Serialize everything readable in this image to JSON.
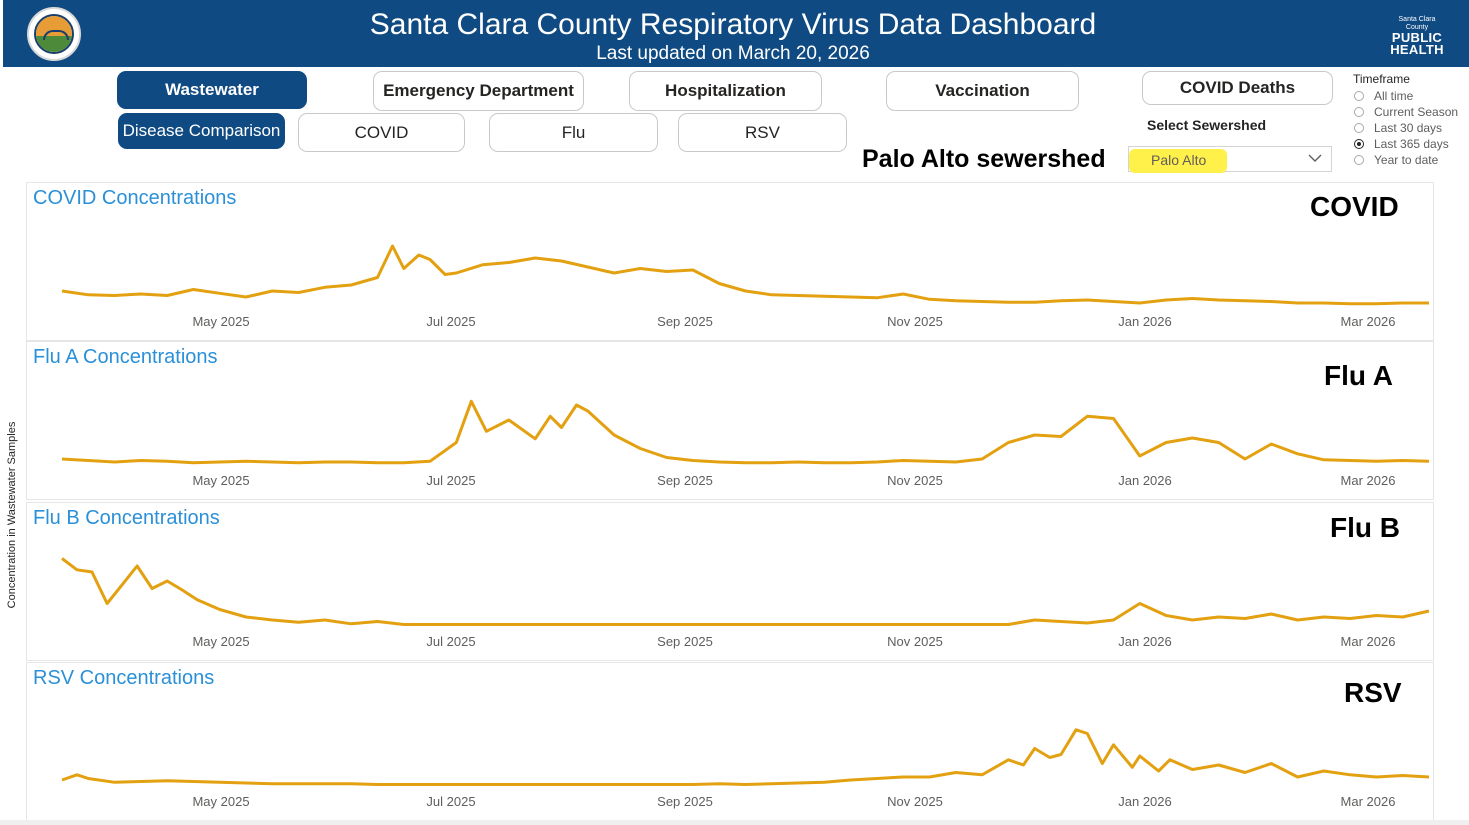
{
  "header": {
    "title": "Santa Clara County Respiratory Virus Data Dashboard",
    "subtitle": "Last updated on March 20, 2026",
    "logo_small": "Santa Clara County",
    "logo_line1": "PUBLIC",
    "logo_line2": "HEALTH"
  },
  "nav": {
    "wastewater": "Wastewater",
    "emergency": "Emergency Department",
    "hospitalization": "Hospitalization",
    "vaccination": "Vaccination",
    "covid_deaths": "COVID Deaths",
    "disease_comparison": "Disease Comparison",
    "covid": "COVID",
    "flu": "Flu",
    "rsv": "RSV"
  },
  "sewershed": {
    "label": "Select Sewershed",
    "value": "Palo Alto",
    "annotation": "Palo Alto sewershed"
  },
  "timeframe": {
    "title": "Timeframe",
    "options": [
      "All time",
      "Current Season",
      "Last 30 days",
      "Last 365 days",
      "Year to date"
    ],
    "selected": "Last 365 days"
  },
  "yaxis_label": "Concentration in Wastewater Samples",
  "colors": {
    "line": "#e3a010",
    "header": "#0f4a82",
    "title": "#2a90d8"
  },
  "chart_data": [
    {
      "type": "line",
      "title": "COVID Concentrations",
      "annotation": "COVID",
      "xlabel": "",
      "ylabel": "",
      "x_ticks": [
        "May 2025",
        "Jul 2025",
        "Sep 2025",
        "Nov 2025",
        "Jan 2026",
        "Mar 2026"
      ],
      "ylim": [
        0,
        100
      ],
      "x_day": [
        0,
        7,
        14,
        21,
        28,
        35,
        42,
        49,
        56,
        63,
        70,
        77,
        84,
        88,
        91,
        95,
        98,
        102,
        105,
        112,
        119,
        126,
        133,
        140,
        147,
        154,
        161,
        168,
        175,
        182,
        189,
        196,
        203,
        210,
        217,
        224,
        231,
        238,
        245,
        252,
        259,
        266,
        273,
        280,
        287,
        294,
        301,
        308,
        315,
        322,
        329,
        336,
        343,
        350,
        357,
        364
      ],
      "values": [
        20,
        15,
        14,
        16,
        14,
        22,
        17,
        12,
        20,
        18,
        25,
        28,
        38,
        80,
        50,
        68,
        62,
        42,
        44,
        55,
        58,
        64,
        60,
        52,
        44,
        50,
        46,
        48,
        30,
        20,
        15,
        14,
        13,
        12,
        11,
        16,
        9,
        7,
        6,
        5,
        5,
        7,
        8,
        6,
        4,
        8,
        10,
        8,
        7,
        6,
        4,
        4,
        3,
        3,
        4,
        4
      ]
    },
    {
      "type": "line",
      "title": "Flu A Concentrations",
      "annotation": "Flu A",
      "xlabel": "",
      "ylabel": "",
      "x_ticks": [
        "May 2025",
        "Jul 2025",
        "Sep 2025",
        "Nov 2025",
        "Jan 2026",
        "Mar 2026"
      ],
      "ylim": [
        0,
        100
      ],
      "x_day": [
        0,
        7,
        14,
        21,
        28,
        35,
        42,
        49,
        56,
        63,
        70,
        77,
        84,
        91,
        98,
        105,
        109,
        113,
        119,
        126,
        130,
        133,
        137,
        140,
        147,
        154,
        161,
        168,
        175,
        182,
        189,
        196,
        203,
        210,
        217,
        224,
        231,
        238,
        245,
        252,
        259,
        266,
        273,
        280,
        287,
        294,
        301,
        308,
        315,
        322,
        329,
        336,
        343,
        350,
        357,
        364
      ],
      "values": [
        8,
        6,
        4,
        6,
        5,
        3,
        4,
        5,
        4,
        3,
        4,
        4,
        3,
        3,
        5,
        30,
        85,
        45,
        60,
        35,
        65,
        50,
        80,
        72,
        40,
        22,
        10,
        6,
        4,
        3,
        3,
        4,
        3,
        3,
        4,
        6,
        5,
        4,
        8,
        30,
        40,
        38,
        65,
        62,
        12,
        30,
        36,
        30,
        8,
        28,
        15,
        7,
        6,
        5,
        6,
        5
      ]
    },
    {
      "type": "line",
      "title": "Flu B Concentrations",
      "annotation": "Flu B",
      "xlabel": "",
      "ylabel": "",
      "x_ticks": [
        "May 2025",
        "Jul 2025",
        "Sep 2025",
        "Nov 2025",
        "Jan 2026",
        "Mar 2026"
      ],
      "ylim": [
        0,
        100
      ],
      "x_day": [
        0,
        4,
        8,
        12,
        16,
        20,
        24,
        28,
        32,
        36,
        42,
        49,
        56,
        63,
        70,
        77,
        84,
        91,
        98,
        105,
        112,
        119,
        126,
        133,
        140,
        147,
        154,
        161,
        168,
        175,
        182,
        189,
        196,
        203,
        210,
        217,
        224,
        231,
        238,
        245,
        252,
        259,
        266,
        273,
        280,
        287,
        294,
        301,
        308,
        315,
        322,
        329,
        336,
        343,
        350,
        357,
        364
      ],
      "values": [
        90,
        75,
        72,
        30,
        55,
        80,
        50,
        60,
        48,
        35,
        22,
        12,
        8,
        5,
        8,
        3,
        6,
        2,
        2,
        2,
        2,
        2,
        2,
        2,
        2,
        2,
        2,
        2,
        2,
        2,
        2,
        2,
        2,
        2,
        2,
        2,
        2,
        2,
        2,
        2,
        2,
        8,
        6,
        4,
        8,
        30,
        14,
        8,
        12,
        10,
        16,
        8,
        12,
        10,
        14,
        12,
        20
      ]
    },
    {
      "type": "line",
      "title": "RSV Concentrations",
      "annotation": "RSV",
      "xlabel": "",
      "ylabel": "",
      "x_ticks": [
        "May 2025",
        "Jul 2025",
        "Sep 2025",
        "Nov 2025",
        "Jan 2026",
        "Mar 2026"
      ],
      "ylim": [
        0,
        100
      ],
      "x_day": [
        0,
        4,
        7,
        14,
        21,
        28,
        35,
        42,
        49,
        56,
        63,
        70,
        77,
        84,
        91,
        98,
        105,
        112,
        119,
        126,
        133,
        140,
        147,
        154,
        161,
        168,
        175,
        182,
        189,
        196,
        203,
        210,
        217,
        224,
        231,
        238,
        245,
        252,
        256,
        259,
        263,
        266,
        270,
        273,
        277,
        280,
        285,
        287,
        292,
        295,
        301,
        308,
        315,
        322,
        329,
        336,
        343,
        350,
        357,
        364
      ],
      "values": [
        8,
        15,
        10,
        5,
        6,
        7,
        6,
        5,
        4,
        3,
        3,
        3,
        3,
        2,
        2,
        2,
        2,
        2,
        2,
        2,
        2,
        2,
        2,
        2,
        2,
        2,
        3,
        2,
        3,
        4,
        5,
        8,
        10,
        12,
        12,
        18,
        15,
        35,
        28,
        50,
        38,
        42,
        75,
        70,
        30,
        55,
        25,
        40,
        20,
        35,
        22,
        28,
        18,
        30,
        12,
        20,
        15,
        12,
        14,
        12
      ]
    }
  ]
}
